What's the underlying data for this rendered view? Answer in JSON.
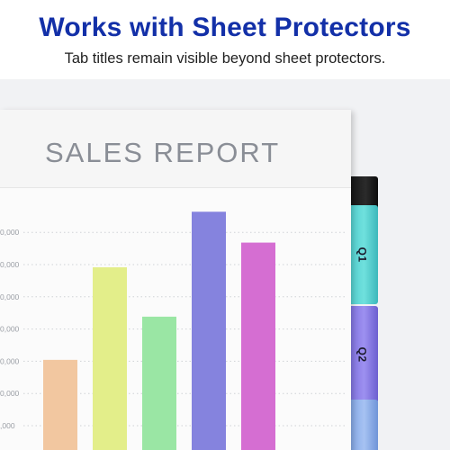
{
  "headline": "Works with Sheet Protectors",
  "subline": "Tab titles remain visible beyond sheet protectors.",
  "report_title": "SALES REPORT",
  "tabs": [
    {
      "label": "Q1",
      "color": "#5fd6d4"
    },
    {
      "label": "Q2",
      "color": "#8c7fe8"
    }
  ],
  "colors": {
    "headline": "#1330a8",
    "report_title": "#8a8e96",
    "bars": [
      "#f2c7a0",
      "#e3ee8a",
      "#9ae6a4",
      "#8583de",
      "#d56ed2"
    ]
  },
  "chart_data": {
    "type": "bar",
    "title": "SALES REPORT",
    "ytick_labels": [
      ",000",
      "0,000",
      "0,000",
      "0,000",
      "0,000",
      "0,000",
      "0,000"
    ],
    "values": [
      1.9,
      4.9,
      3.3,
      6.7,
      5.7
    ],
    "ylim": [
      0,
      7
    ],
    "grid": true,
    "gridlines_dotted": true
  }
}
